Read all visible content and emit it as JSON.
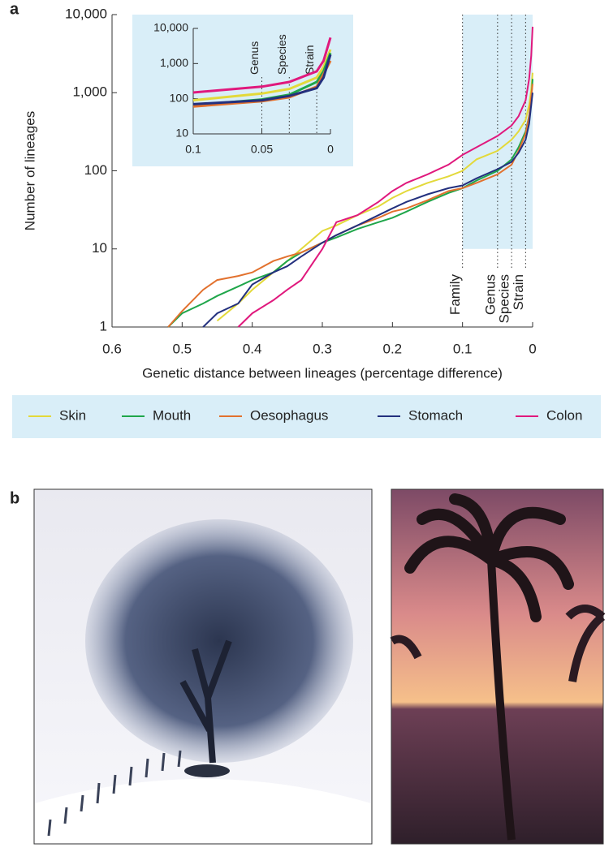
{
  "panel_labels": [
    "a",
    "b"
  ],
  "chart_data": [
    {
      "type": "line",
      "x_label": "Genetic distance between lineages (percentage difference)",
      "y_label": "Number of lineages",
      "log_y": true,
      "xlim": [
        0.6,
        0
      ],
      "ylim": [
        1,
        10000
      ],
      "xticks": [
        0.6,
        0.5,
        0.4,
        0.3,
        0.2,
        0.1,
        0
      ],
      "yticks": [
        1,
        10,
        100,
        {
          "value": 1000,
          "label": "1,000"
        },
        {
          "value": 10000,
          "label": "10,000"
        }
      ],
      "highlight": {
        "xlim": [
          0.1,
          0
        ],
        "ylim": [
          10,
          10000
        ],
        "color": "#d9eef8"
      },
      "annotations": [
        {
          "text": "Family",
          "x": 0.1
        },
        {
          "text": "Genus",
          "x": 0.05
        },
        {
          "text": "Species",
          "x": 0.03
        },
        {
          "text": "Strain",
          "x": 0.01
        }
      ],
      "x": [
        0.52,
        0.5,
        0.47,
        0.45,
        0.42,
        0.4,
        0.37,
        0.35,
        0.33,
        0.3,
        0.28,
        0.25,
        0.22,
        0.2,
        0.18,
        0.15,
        0.12,
        0.1,
        0.08,
        0.05,
        0.03,
        0.02,
        0.01,
        0.005,
        0.002,
        0
      ],
      "series": [
        {
          "name": "Skin",
          "color": "#e3d93a",
          "values": [
            null,
            null,
            null,
            1.2,
            2,
            3,
            5,
            7,
            10,
            17,
            20,
            27,
            35,
            45,
            55,
            70,
            85,
            100,
            140,
            180,
            250,
            320,
            450,
            700,
            1100,
            1800
          ]
        },
        {
          "name": "Mouth",
          "color": "#1fa64a",
          "values": [
            1,
            1.5,
            2,
            2.5,
            3.3,
            4,
            5,
            7,
            9,
            12,
            14,
            18,
            22,
            25,
            30,
            40,
            52,
            60,
            75,
            100,
            140,
            200,
            320,
            500,
            800,
            1500
          ]
        },
        {
          "name": "Oesophagus",
          "color": "#e2712e",
          "values": [
            1,
            1.6,
            3,
            4,
            4.5,
            5,
            7,
            8,
            9,
            12,
            15,
            20,
            25,
            30,
            33,
            42,
            55,
            60,
            70,
            90,
            120,
            180,
            300,
            500,
            900,
            1300
          ]
        },
        {
          "name": "Stomach",
          "color": "#23307e",
          "values": [
            null,
            null,
            1,
            1.5,
            2,
            3.5,
            5,
            6,
            8,
            12,
            15,
            20,
            27,
            33,
            40,
            50,
            60,
            65,
            80,
            105,
            130,
            170,
            250,
            400,
            700,
            1000
          ]
        },
        {
          "name": "Colon",
          "color": "#e0197d",
          "values": [
            null,
            null,
            null,
            null,
            1,
            1.5,
            2.2,
            3,
            4,
            10,
            22,
            27,
            40,
            55,
            70,
            90,
            120,
            160,
            200,
            280,
            380,
            500,
            800,
            1500,
            3000,
            7000
          ]
        }
      ]
    },
    {
      "type": "line",
      "log_y": true,
      "xlim": [
        0.1,
        0
      ],
      "ylim": [
        10,
        10000
      ],
      "xticks": [
        0.1,
        0.05,
        0
      ],
      "yticks": [
        10,
        100,
        {
          "value": 1000,
          "label": "1,000"
        },
        {
          "value": 10000,
          "label": "10,000"
        }
      ],
      "annotations": [
        {
          "text": "Genus",
          "x": 0.05
        },
        {
          "text": "Species",
          "x": 0.03
        },
        {
          "text": "Strain",
          "x": 0.01
        }
      ],
      "x": [
        0.1,
        0.05,
        0.03,
        0.01,
        0.005,
        0
      ],
      "series": [
        {
          "color": "#e3d93a",
          "values": [
            90,
            140,
            190,
            400,
            800,
            2500
          ]
        },
        {
          "color": "#1fa64a",
          "values": [
            65,
            95,
            130,
            300,
            600,
            2000
          ]
        },
        {
          "color": "#e2712e",
          "values": [
            60,
            85,
            110,
            220,
            500,
            1200
          ]
        },
        {
          "color": "#23307e",
          "values": [
            70,
            90,
            120,
            200,
            400,
            1800
          ]
        },
        {
          "color": "#e0197d",
          "values": [
            150,
            220,
            300,
            600,
            1200,
            5500
          ]
        }
      ]
    }
  ]
}
